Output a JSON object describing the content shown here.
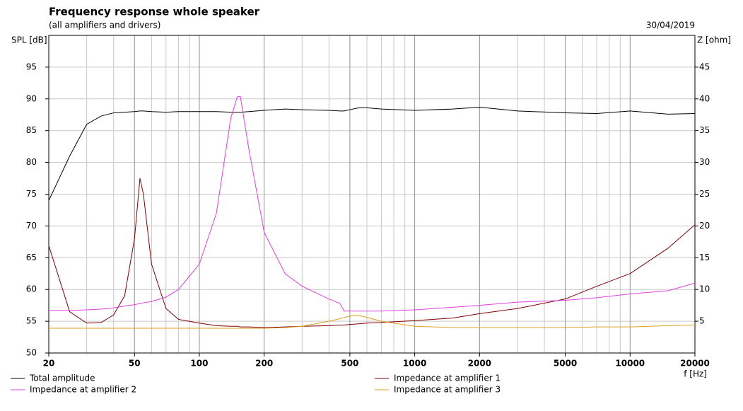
{
  "chart_data": {
    "type": "line",
    "title": "Frequency response whole speaker",
    "subtitle": "(all amplifiers and drivers)",
    "date": "30/04/2019",
    "y_label": "SPL [dB]",
    "y2_label": "Z [ohm]",
    "x_label": "f [Hz]",
    "log_x": true,
    "grid": true,
    "legend": "bottom",
    "xlim": [
      20,
      20000
    ],
    "xticks": [
      20,
      50,
      100,
      200,
      500,
      1000,
      2000,
      5000,
      10000,
      20000
    ],
    "x_minor_ticks": [
      30,
      40,
      60,
      70,
      80,
      90,
      300,
      400,
      600,
      700,
      800,
      900,
      3000,
      4000,
      6000,
      7000,
      8000,
      9000
    ],
    "ylim": [
      50,
      100
    ],
    "yticks": [
      50,
      55,
      60,
      65,
      70,
      75,
      80,
      85,
      90,
      95
    ],
    "y2lim": [
      0,
      50
    ],
    "y2ticks": [
      5,
      10,
      15,
      20,
      25,
      30,
      35,
      40,
      45
    ],
    "x": [
      20,
      25,
      30,
      35,
      40,
      45,
      50,
      53,
      55,
      60,
      70,
      80,
      100,
      120,
      140,
      150,
      155,
      170,
      200,
      250,
      300,
      400,
      450,
      470,
      500,
      550,
      600,
      700,
      1000,
      1500,
      2000,
      3000,
      5000,
      7000,
      10000,
      15000,
      20000
    ],
    "series": [
      {
        "name": "Total amplitude",
        "color": "#000000",
        "axis": "y",
        "values": [
          74,
          81,
          86,
          87.3,
          87.8,
          87.9,
          88,
          88.1,
          88.1,
          88,
          87.9,
          88,
          88,
          88,
          87.9,
          87.9,
          87.9,
          88,
          88.2,
          88.4,
          88.3,
          88.2,
          88.1,
          88.1,
          88.3,
          88.6,
          88.6,
          88.4,
          88.2,
          88.4,
          88.7,
          88.1,
          87.8,
          87.7,
          88.1,
          87.6,
          87.7
        ]
      },
      {
        "name": "Impedance at amplifier 1",
        "color": "#800000",
        "axis": "y2",
        "values": [
          16.9,
          6.5,
          4.7,
          4.8,
          6.0,
          9,
          18,
          27.5,
          25,
          14,
          7,
          5.3,
          4.7,
          4.3,
          4.2,
          4.2,
          4.1,
          4.1,
          4.0,
          4.1,
          4.2,
          4.3,
          4.4,
          4.4,
          4.5,
          4.6,
          4.7,
          4.8,
          5.1,
          5.5,
          6.2,
          7.0,
          8.5,
          10.5,
          12.5,
          16.5,
          20.2
        ]
      },
      {
        "name": "Impedance at amplifier 2",
        "color": "#e040e0",
        "axis": "y2",
        "values": [
          6.7,
          6.7,
          6.8,
          6.9,
          7.1,
          7.4,
          7.6,
          7.8,
          7.9,
          8.1,
          8.8,
          10,
          14,
          22,
          37,
          40.3,
          40.4,
          32,
          19,
          12.5,
          10.5,
          8.5,
          7.8,
          6.6,
          6.6,
          6.6,
          6.6,
          6.6,
          6.8,
          7.2,
          7.5,
          8.0,
          8.3,
          8.7,
          9.3,
          9.8,
          11.0
        ]
      },
      {
        "name": "Impedance at amplifier 3",
        "color": "#e0a020",
        "axis": "y2",
        "values": [
          3.9,
          3.9,
          3.9,
          3.9,
          3.9,
          3.9,
          3.9,
          3.9,
          3.9,
          3.9,
          3.9,
          3.9,
          3.9,
          3.9,
          3.9,
          3.9,
          3.9,
          3.9,
          3.9,
          4.0,
          4.2,
          5.0,
          5.4,
          5.6,
          5.8,
          5.9,
          5.6,
          5.0,
          4.2,
          4.0,
          4.0,
          4.0,
          4.0,
          4.1,
          4.1,
          4.3,
          4.4
        ]
      }
    ]
  }
}
